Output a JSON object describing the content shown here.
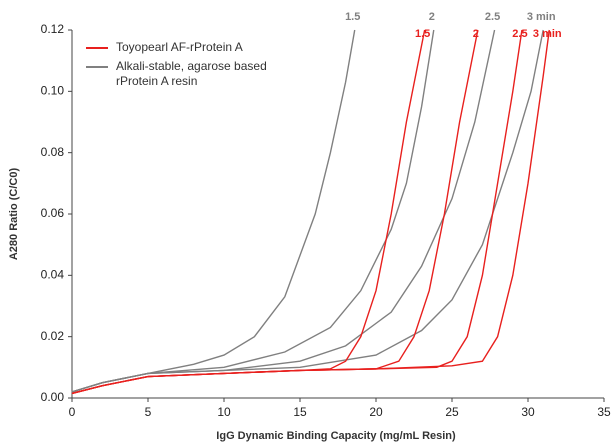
{
  "chart_data": {
    "type": "line",
    "xlabel": "IgG Dynamic Binding Capacity (mg/mL Resin)",
    "ylabel": "A280 Ratio (C/C0)",
    "xlim": [
      0,
      35
    ],
    "xticks": [
      0,
      5,
      10,
      15,
      20,
      25,
      30,
      35
    ],
    "ylim": [
      0,
      0.12
    ],
    "yticks": [
      {
        "value": 0,
        "label": "0.00"
      },
      {
        "value": 0.02,
        "label": "0.02"
      },
      {
        "value": 0.04,
        "label": "0.04"
      },
      {
        "value": 0.06,
        "label": "0.06"
      },
      {
        "value": 0.08,
        "label": "0.08"
      },
      {
        "value": 0.1,
        "label": "0.10"
      },
      {
        "value": 0.12,
        "label": "0.12"
      }
    ],
    "grid": false,
    "legend": [
      {
        "name": "Toyopearl AF-rProtein A",
        "color": "#e8201e"
      },
      {
        "name": "Alkali-stable, agarose based rProtein A resin",
        "color": "#808080"
      }
    ],
    "series": [
      {
        "label": "1.5",
        "color": "#808080",
        "x": [
          0,
          2,
          5,
          8,
          10,
          12,
          14,
          16,
          17,
          18,
          18.6
        ],
        "values": [
          0.002,
          0.005,
          0.008,
          0.011,
          0.014,
          0.02,
          0.033,
          0.06,
          0.08,
          0.103,
          0.12
        ]
      },
      {
        "label": "2",
        "color": "#808080",
        "x": [
          0,
          2,
          5,
          10,
          14,
          17,
          19,
          21,
          22,
          23,
          23.8
        ],
        "values": [
          0.002,
          0.005,
          0.008,
          0.01,
          0.015,
          0.023,
          0.035,
          0.055,
          0.07,
          0.095,
          0.12
        ]
      },
      {
        "label": "2.5",
        "color": "#808080",
        "x": [
          0,
          2,
          5,
          10,
          15,
          18,
          21,
          23,
          25,
          26.5,
          27.8
        ],
        "values": [
          0.002,
          0.005,
          0.008,
          0.009,
          0.012,
          0.017,
          0.028,
          0.043,
          0.065,
          0.09,
          0.12
        ]
      },
      {
        "label": "3 min",
        "color": "#808080",
        "x": [
          0,
          2,
          5,
          10,
          15,
          20,
          23,
          25,
          27,
          29,
          30.2,
          31
        ],
        "values": [
          0.002,
          0.005,
          0.008,
          0.009,
          0.01,
          0.014,
          0.022,
          0.032,
          0.05,
          0.08,
          0.1,
          0.12
        ]
      },
      {
        "label": "1.5",
        "color": "#e8201e",
        "x": [
          0,
          2,
          5,
          10,
          15,
          17,
          18,
          19,
          20,
          21,
          22,
          23.2
        ],
        "values": [
          0.0015,
          0.004,
          0.007,
          0.008,
          0.009,
          0.0095,
          0.012,
          0.02,
          0.035,
          0.06,
          0.09,
          0.12
        ]
      },
      {
        "label": "2",
        "color": "#e8201e",
        "x": [
          0,
          2,
          5,
          10,
          15,
          20,
          21.5,
          22.5,
          23.5,
          24.5,
          25.5,
          26.7
        ],
        "values": [
          0.0015,
          0.004,
          0.007,
          0.008,
          0.009,
          0.0095,
          0.012,
          0.02,
          0.035,
          0.06,
          0.09,
          0.12
        ]
      },
      {
        "label": "2.5",
        "color": "#e8201e",
        "x": [
          0,
          2,
          5,
          10,
          15,
          20,
          24,
          25,
          26,
          27,
          28,
          29,
          29.6
        ],
        "values": [
          0.0015,
          0.004,
          0.007,
          0.008,
          0.009,
          0.0095,
          0.01,
          0.012,
          0.02,
          0.04,
          0.07,
          0.1,
          0.12
        ]
      },
      {
        "label": "3 min",
        "color": "#e8201e",
        "x": [
          0,
          2,
          5,
          10,
          15,
          20,
          25,
          27,
          28,
          29,
          30,
          31,
          31.4
        ],
        "values": [
          0.0015,
          0.004,
          0.007,
          0.008,
          0.009,
          0.0095,
          0.0105,
          0.012,
          0.02,
          0.04,
          0.07,
          0.105,
          0.12
        ]
      }
    ]
  }
}
